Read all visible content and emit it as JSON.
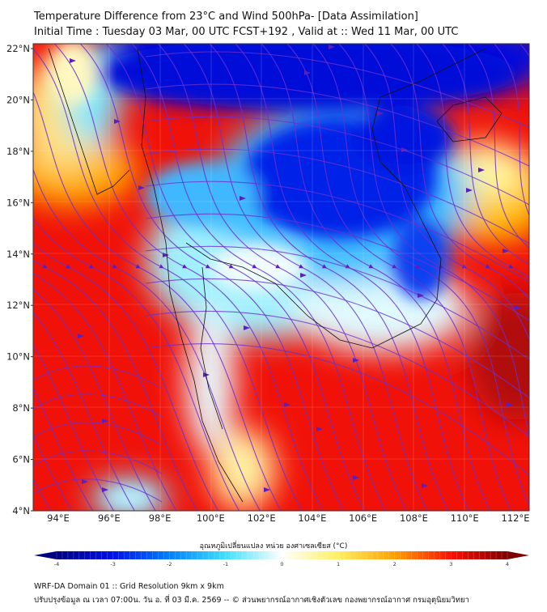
{
  "header": {
    "title": "Temperature Difference from 23°C and Wind 500hPa- [Data Assimilation]",
    "subtitle": "Initial Time : Tuesday 03 Mar, 00 UTC FCST+192 , Valid at ::  Wed 11 Mar, 00 UTC"
  },
  "map": {
    "lat_labels": [
      "22°N",
      "20°N",
      "18°N",
      "16°N",
      "14°N",
      "12°N",
      "10°N",
      "8°N",
      "6°N",
      "4°N"
    ],
    "lon_labels": [
      "94°E",
      "96°E",
      "98°E",
      "100°E",
      "102°E",
      "104°E",
      "106°E",
      "108°E",
      "110°E",
      "112°E"
    ],
    "streamline_color": "#6a2fd0"
  },
  "colorbar": {
    "title": "อุณหภูมิเปลี่ยนแปลง หน่วย องศาเซลเซียส (°C)",
    "ticks": [
      "-4",
      "-3",
      "-2",
      "-1",
      "0",
      "1",
      "2",
      "3",
      "4"
    ],
    "colors": [
      "#00007f",
      "#0010e8",
      "#0080ff",
      "#40e0ff",
      "#ffffff",
      "#fff060",
      "#ffa000",
      "#ff1000",
      "#7f0000"
    ]
  },
  "footer": {
    "line1": "WRF-DA Domain 01 :: Grid Resolution 9km x 9km",
    "line2": "ปรับปรุงข้อมูล ณ เวลา 07:00น. วัน อ. ที่ 03 มี.ค. 2569 -- © ส่วนพยากรณ์อากาศเชิงตัวเลข กองพยากรณ์อากาศ กรมอุตุนิยมวิทยา"
  }
}
